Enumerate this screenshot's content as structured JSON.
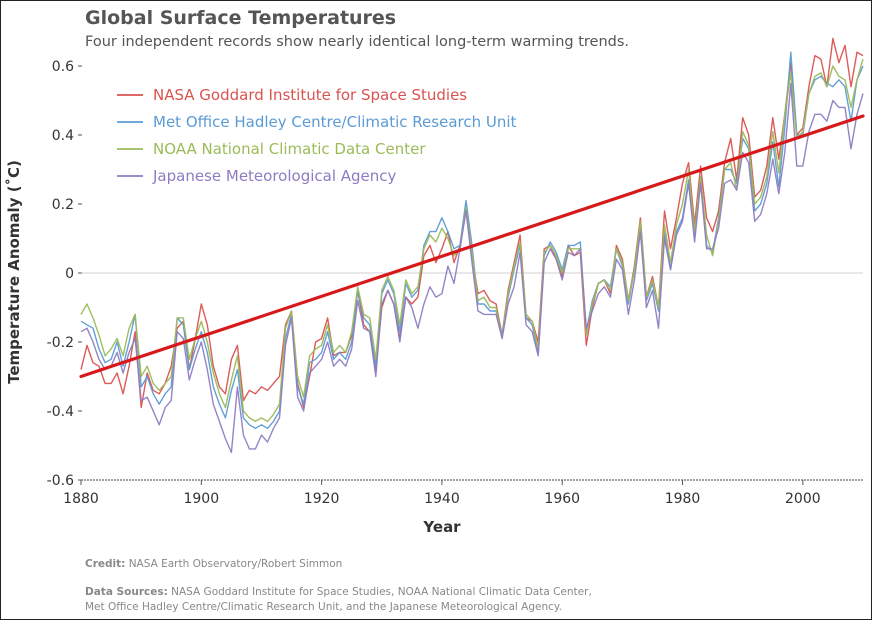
{
  "chart_data": {
    "type": "line",
    "title": "Global Surface Temperatures",
    "subtitle": "Four independent records show nearly identical long-term warming trends.",
    "xlabel": "Year",
    "ylabel": "Temperature Anomaly (˚C)",
    "xlim": [
      1880,
      2010
    ],
    "ylim": [
      -0.6,
      0.65
    ],
    "x_ticks": [
      1880,
      1900,
      1920,
      1940,
      1960,
      1980,
      2000
    ],
    "y_ticks": [
      0.6,
      0.4,
      0.2,
      0,
      -0.2,
      -0.4,
      -0.6
    ],
    "y_tick_labels": [
      "0.6",
      "0.4",
      "0.2",
      "0",
      "-0.2",
      "-0.4",
      "-0.6"
    ],
    "x": [
      1880,
      1881,
      1882,
      1883,
      1884,
      1885,
      1886,
      1887,
      1888,
      1889,
      1890,
      1891,
      1892,
      1893,
      1894,
      1895,
      1896,
      1897,
      1898,
      1899,
      1900,
      1901,
      1902,
      1903,
      1904,
      1905,
      1906,
      1907,
      1908,
      1909,
      1910,
      1911,
      1912,
      1913,
      1914,
      1915,
      1916,
      1917,
      1918,
      1919,
      1920,
      1921,
      1922,
      1923,
      1924,
      1925,
      1926,
      1927,
      1928,
      1929,
      1930,
      1931,
      1932,
      1933,
      1934,
      1935,
      1936,
      1937,
      1938,
      1939,
      1940,
      1941,
      1942,
      1943,
      1944,
      1945,
      1946,
      1947,
      1948,
      1949,
      1950,
      1951,
      1952,
      1953,
      1954,
      1955,
      1956,
      1957,
      1958,
      1959,
      1960,
      1961,
      1962,
      1963,
      1964,
      1965,
      1966,
      1967,
      1968,
      1969,
      1970,
      1971,
      1972,
      1973,
      1974,
      1975,
      1976,
      1977,
      1978,
      1979,
      1980,
      1981,
      1982,
      1983,
      1984,
      1985,
      1986,
      1987,
      1988,
      1989,
      1990,
      1991,
      1992,
      1993,
      1994,
      1995,
      1996,
      1997,
      1998,
      1999,
      2000,
      2001,
      2002,
      2003,
      2004,
      2005,
      2006,
      2007,
      2008,
      2009,
      2010
    ],
    "series": [
      {
        "name": "NASA Goddard Institute for Space Studies",
        "color": "#d9534f",
        "values": [
          -0.28,
          -0.21,
          -0.26,
          -0.27,
          -0.32,
          -0.32,
          -0.29,
          -0.35,
          -0.27,
          -0.17,
          -0.39,
          -0.29,
          -0.34,
          -0.35,
          -0.32,
          -0.27,
          -0.16,
          -0.14,
          -0.28,
          -0.19,
          -0.09,
          -0.15,
          -0.27,
          -0.33,
          -0.35,
          -0.25,
          -0.21,
          -0.37,
          -0.34,
          -0.35,
          -0.33,
          -0.34,
          -0.32,
          -0.3,
          -0.15,
          -0.11,
          -0.32,
          -0.39,
          -0.3,
          -0.2,
          -0.19,
          -0.13,
          -0.24,
          -0.23,
          -0.23,
          -0.18,
          -0.05,
          -0.15,
          -0.17,
          -0.28,
          -0.1,
          -0.05,
          -0.09,
          -0.19,
          -0.07,
          -0.09,
          -0.07,
          0.05,
          0.08,
          0.03,
          0.07,
          0.12,
          0.03,
          0.08,
          0.19,
          0.05,
          -0.06,
          -0.05,
          -0.08,
          -0.09,
          -0.18,
          -0.05,
          0.03,
          0.11,
          -0.13,
          -0.14,
          -0.2,
          0.07,
          0.08,
          0.04,
          -0.01,
          0.08,
          0.05,
          0.06,
          -0.21,
          -0.1,
          -0.03,
          -0.02,
          -0.06,
          0.08,
          0.04,
          -0.08,
          0.02,
          0.16,
          -0.07,
          -0.01,
          -0.1,
          0.18,
          0.07,
          0.16,
          0.26,
          0.32,
          0.14,
          0.31,
          0.16,
          0.12,
          0.18,
          0.32,
          0.39,
          0.27,
          0.45,
          0.4,
          0.22,
          0.24,
          0.31,
          0.45,
          0.33,
          0.46,
          0.61,
          0.4,
          0.42,
          0.54,
          0.63,
          0.62,
          0.54,
          0.68,
          0.61,
          0.66,
          0.54,
          0.64,
          0.63
        ]
      },
      {
        "name": "Met Office Hadley Centre/Climatic Research Unit",
        "color": "#5b9bd5",
        "values": [
          -0.14,
          -0.15,
          -0.16,
          -0.22,
          -0.26,
          -0.25,
          -0.2,
          -0.27,
          -0.2,
          -0.12,
          -0.33,
          -0.3,
          -0.35,
          -0.38,
          -0.35,
          -0.33,
          -0.13,
          -0.15,
          -0.28,
          -0.22,
          -0.17,
          -0.23,
          -0.33,
          -0.38,
          -0.42,
          -0.34,
          -0.28,
          -0.42,
          -0.44,
          -0.45,
          -0.44,
          -0.45,
          -0.43,
          -0.4,
          -0.19,
          -0.12,
          -0.33,
          -0.38,
          -0.26,
          -0.25,
          -0.23,
          -0.17,
          -0.25,
          -0.23,
          -0.25,
          -0.2,
          -0.05,
          -0.13,
          -0.15,
          -0.27,
          -0.06,
          -0.02,
          -0.06,
          -0.17,
          -0.03,
          -0.07,
          -0.05,
          0.08,
          0.12,
          0.12,
          0.16,
          0.12,
          0.07,
          0.08,
          0.21,
          0.08,
          -0.09,
          -0.09,
          -0.11,
          -0.11,
          -0.18,
          -0.07,
          0.01,
          0.08,
          -0.13,
          -0.15,
          -0.23,
          0.05,
          0.09,
          0.06,
          0.01,
          0.08,
          0.08,
          0.09,
          -0.17,
          -0.08,
          -0.03,
          -0.02,
          -0.04,
          0.07,
          0.02,
          -0.09,
          0.01,
          0.14,
          -0.08,
          -0.03,
          -0.11,
          0.12,
          0.01,
          0.12,
          0.16,
          0.27,
          0.11,
          0.28,
          0.08,
          0.06,
          0.16,
          0.3,
          0.3,
          0.26,
          0.39,
          0.36,
          0.18,
          0.2,
          0.26,
          0.38,
          0.25,
          0.42,
          0.64,
          0.4,
          0.4,
          0.52,
          0.56,
          0.57,
          0.55,
          0.54,
          0.56,
          0.54,
          0.44,
          0.56,
          0.6
        ]
      },
      {
        "name": "NOAA National Climatic Data Center",
        "color": "#9bbb59",
        "values": [
          -0.12,
          -0.09,
          -0.13,
          -0.18,
          -0.24,
          -0.22,
          -0.19,
          -0.24,
          -0.16,
          -0.12,
          -0.3,
          -0.27,
          -0.32,
          -0.34,
          -0.32,
          -0.3,
          -0.13,
          -0.13,
          -0.25,
          -0.19,
          -0.14,
          -0.2,
          -0.29,
          -0.35,
          -0.39,
          -0.31,
          -0.24,
          -0.4,
          -0.42,
          -0.43,
          -0.42,
          -0.43,
          -0.41,
          -0.38,
          -0.16,
          -0.11,
          -0.3,
          -0.36,
          -0.24,
          -0.22,
          -0.21,
          -0.15,
          -0.23,
          -0.21,
          -0.23,
          -0.17,
          -0.04,
          -0.12,
          -0.13,
          -0.25,
          -0.05,
          -0.01,
          -0.05,
          -0.15,
          -0.02,
          -0.06,
          -0.04,
          0.07,
          0.11,
          0.09,
          0.13,
          0.1,
          0.05,
          0.07,
          0.19,
          0.06,
          -0.08,
          -0.07,
          -0.1,
          -0.1,
          -0.19,
          -0.06,
          0.02,
          0.09,
          -0.12,
          -0.14,
          -0.22,
          0.06,
          0.08,
          0.05,
          0.0,
          0.07,
          0.07,
          0.07,
          -0.18,
          -0.09,
          -0.03,
          -0.02,
          -0.05,
          0.07,
          0.03,
          -0.08,
          0.01,
          0.15,
          -0.07,
          -0.02,
          -0.1,
          0.14,
          0.03,
          0.14,
          0.2,
          0.3,
          0.12,
          0.28,
          0.11,
          0.05,
          0.15,
          0.3,
          0.32,
          0.24,
          0.41,
          0.37,
          0.2,
          0.22,
          0.28,
          0.41,
          0.29,
          0.46,
          0.58,
          0.39,
          0.41,
          0.52,
          0.57,
          0.58,
          0.54,
          0.6,
          0.57,
          0.56,
          0.48,
          0.56,
          0.62
        ]
      },
      {
        "name": "Japanese Meteorological Agency",
        "color": "#8e7cc3",
        "values": [
          -0.17,
          -0.16,
          -0.2,
          -0.25,
          -0.28,
          -0.27,
          -0.23,
          -0.29,
          -0.23,
          -0.19,
          -0.37,
          -0.36,
          -0.4,
          -0.44,
          -0.39,
          -0.37,
          -0.17,
          -0.19,
          -0.31,
          -0.25,
          -0.2,
          -0.28,
          -0.38,
          -0.43,
          -0.48,
          -0.52,
          -0.33,
          -0.47,
          -0.51,
          -0.51,
          -0.47,
          -0.49,
          -0.45,
          -0.42,
          -0.21,
          -0.13,
          -0.36,
          -0.4,
          -0.29,
          -0.27,
          -0.25,
          -0.2,
          -0.27,
          -0.25,
          -0.27,
          -0.22,
          -0.08,
          -0.16,
          -0.17,
          -0.3,
          -0.09,
          -0.05,
          -0.09,
          -0.2,
          -0.07,
          -0.1,
          -0.16,
          -0.09,
          -0.04,
          -0.07,
          -0.06,
          0.02,
          -0.03,
          0.07,
          0.18,
          0.03,
          -0.11,
          -0.12,
          -0.12,
          -0.12,
          -0.19,
          -0.09,
          -0.04,
          0.06,
          -0.15,
          -0.17,
          -0.24,
          0.03,
          0.07,
          0.04,
          -0.02,
          0.06,
          0.05,
          0.07,
          -0.16,
          -0.11,
          -0.06,
          -0.04,
          -0.07,
          0.04,
          0.01,
          -0.12,
          -0.02,
          0.12,
          -0.1,
          -0.05,
          -0.16,
          0.1,
          0.01,
          0.11,
          0.15,
          0.26,
          0.09,
          0.26,
          0.07,
          0.07,
          0.13,
          0.26,
          0.27,
          0.24,
          0.35,
          0.32,
          0.15,
          0.17,
          0.23,
          0.33,
          0.23,
          0.35,
          0.55,
          0.31,
          0.31,
          0.41,
          0.46,
          0.46,
          0.44,
          0.5,
          0.48,
          0.48,
          0.36,
          0.46,
          0.52
        ]
      }
    ],
    "trend_line": {
      "color": "#d7191c",
      "x": [
        1880,
        2010
      ],
      "y": [
        -0.3,
        0.455
      ]
    },
    "zero_line": true,
    "legend_position": "top-left",
    "credit_label": "Credit:",
    "credit_text": "NASA Earth Observatory/Robert Simmon",
    "sources_label": "Data Sources:",
    "sources_line1": "NASA Goddard Institute for Space Studies, NOAA National Climatic Data Center,",
    "sources_line2": "Met Office Hadley Centre/Climatic Research Unit, and the Japanese Meteorological Agency."
  }
}
